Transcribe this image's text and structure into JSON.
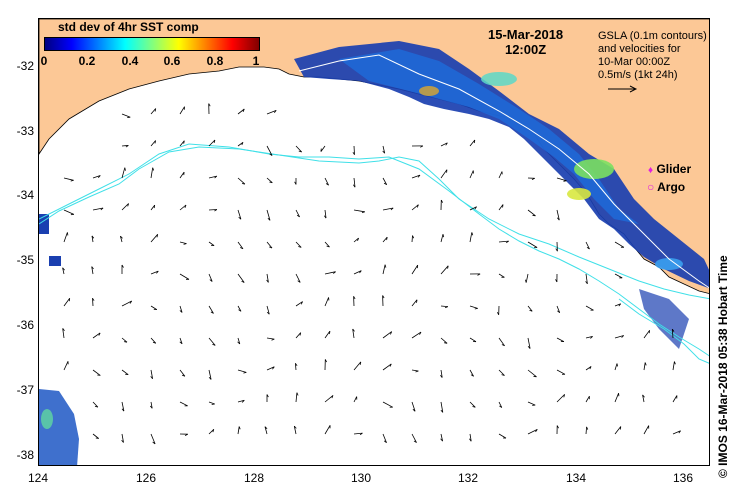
{
  "map": {
    "title_date": "15-Mar-2018",
    "title_time": "12:00Z",
    "info_lines": [
      "GSLA (0.1m contours)",
      "and velocities for",
      "10-Mar 00:00Z",
      "0.5m/s (1kt 24h)"
    ],
    "legend_glider": "Glider",
    "legend_argo": "Argo",
    "glider_symbol": "♦",
    "argo_symbol": "○",
    "credit": "©  IMOS 16-Mar-2018 05:38 Hobart Time",
    "colors": {
      "land": "#fcc896",
      "ocean": "#ffffff",
      "contour": "#40e0e8",
      "marker": "#e020e0"
    }
  },
  "colorbar": {
    "title": "std dev of 4hr SST comp",
    "ticks": [
      "0",
      "0.2",
      "0.4",
      "0.6",
      "0.8",
      "1"
    ]
  },
  "axes": {
    "lat_labels": [
      "-32",
      "-33",
      "-34",
      "-35",
      "-36",
      "-37",
      "-38"
    ],
    "lon_labels": [
      "124",
      "126",
      "128",
      "130",
      "132",
      "134",
      "136"
    ]
  }
}
